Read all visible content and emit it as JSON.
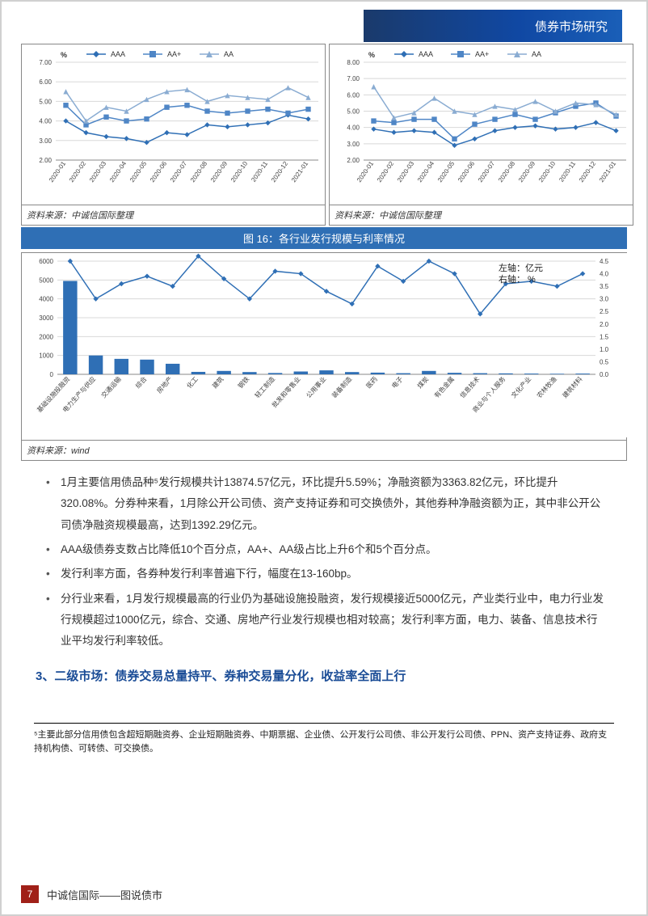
{
  "header": {
    "title": "债券市场研究"
  },
  "line_chart_left": {
    "type": "line",
    "unit": "%",
    "ylim": [
      2.0,
      7.0
    ],
    "ytick_step": 1.0,
    "categories": [
      "2020-01",
      "2020-02",
      "2020-03",
      "2020-04",
      "2020-05",
      "2020-06",
      "2020-07",
      "2020-08",
      "2020-09",
      "2020-10",
      "2020-11",
      "2020-12",
      "2021-01"
    ],
    "series": [
      {
        "name": "AAA",
        "marker": "diamond",
        "color": "#2f6fb5",
        "values": [
          4.0,
          3.4,
          3.2,
          3.1,
          2.9,
          3.4,
          3.3,
          3.8,
          3.7,
          3.8,
          3.9,
          4.3,
          4.1
        ]
      },
      {
        "name": "AA+",
        "marker": "square",
        "color": "#4f86c6",
        "values": [
          4.8,
          3.8,
          4.2,
          4.0,
          4.1,
          4.7,
          4.8,
          4.5,
          4.4,
          4.5,
          4.6,
          4.4,
          4.6
        ]
      },
      {
        "name": "AA",
        "marker": "triangle",
        "color": "#8aacd2",
        "values": [
          5.5,
          4.0,
          4.7,
          4.5,
          5.1,
          5.5,
          5.6,
          5.0,
          5.3,
          5.2,
          5.1,
          5.7,
          5.2
        ]
      }
    ],
    "source": "资料来源：中诚信国际整理",
    "grid_color": "#d8d8d8",
    "background_color": "#ffffff",
    "label_fontsize": 8
  },
  "line_chart_right": {
    "type": "line",
    "unit": "%",
    "ylim": [
      2.0,
      8.0
    ],
    "ytick_step": 1.0,
    "categories": [
      "2020-01",
      "2020-02",
      "2020-03",
      "2020-04",
      "2020-05",
      "2020-06",
      "2020-07",
      "2020-08",
      "2020-09",
      "2020-10",
      "2020-11",
      "2020-12",
      "2021-01"
    ],
    "series": [
      {
        "name": "AAA",
        "marker": "diamond",
        "color": "#2f6fb5",
        "values": [
          3.9,
          3.7,
          3.8,
          3.7,
          2.9,
          3.3,
          3.8,
          4.0,
          4.1,
          3.9,
          4.0,
          4.3,
          3.8
        ]
      },
      {
        "name": "AA+",
        "marker": "square",
        "color": "#4f86c6",
        "values": [
          4.4,
          4.3,
          4.5,
          4.5,
          3.3,
          4.2,
          4.5,
          4.8,
          4.5,
          4.9,
          5.3,
          5.5,
          4.7
        ]
      },
      {
        "name": "AA",
        "marker": "triangle",
        "color": "#8aacd2",
        "values": [
          6.5,
          4.6,
          4.9,
          5.8,
          5.0,
          4.8,
          5.3,
          5.1,
          5.6,
          5.0,
          5.5,
          5.4,
          4.8
        ]
      }
    ],
    "source": "资料来源：中诚信国际整理",
    "grid_color": "#d8d8d8",
    "background_color": "#ffffff",
    "label_fontsize": 8
  },
  "combo_chart": {
    "title_prefix": "图 16：",
    "title": "各行业发行规模与利率情况",
    "type": "bar+line",
    "left_axis_label": "左轴：亿元",
    "right_axis_label": "右轴：  %",
    "left_ylim": [
      0,
      6000
    ],
    "left_ytick_step": 1000,
    "right_ylim": [
      0.0,
      4.5
    ],
    "right_ytick_step": 0.5,
    "categories": [
      "基础设施投融资",
      "电力生产与供应",
      "交通运输",
      "综合",
      "房地产",
      "化工",
      "建筑",
      "钢铁",
      "轻工制造",
      "批发和零售业",
      "公用事业",
      "装备制造",
      "医药",
      "电子",
      "煤炭",
      "有色金属",
      "信息技术",
      "商业与个人服务",
      "文化产业",
      "农林牧渔",
      "建筑材料"
    ],
    "bars": {
      "color": "#2f6fb5",
      "values": [
        4950,
        1000,
        820,
        780,
        560,
        130,
        180,
        120,
        70,
        150,
        210,
        120,
        90,
        60,
        180,
        80,
        60,
        50,
        40,
        30,
        40
      ]
    },
    "line": {
      "color": "#2f6fb5",
      "marker": "diamond",
      "values": [
        4.5,
        3.0,
        3.6,
        3.9,
        3.5,
        4.7,
        3.8,
        3.0,
        4.1,
        4.0,
        3.3,
        2.8,
        4.3,
        3.7,
        4.5,
        4.0,
        2.4,
        3.6,
        3.7,
        3.5,
        4.0
      ]
    },
    "source": "资料来源：wind",
    "grid_color": "#d8d8d8",
    "background_color": "#ffffff",
    "label_fontsize": 8
  },
  "bullets": [
    "1月主要信用债品种⁵发行规模共计13874.57亿元，环比提升5.59%；净融资额为3363.82亿元，环比提升320.08%。分券种来看，1月除公开公司债、资产支持证券和可交换债外，其他券种净融资额为正，其中非公开公司债净融资规模最高，达到1392.29亿元。",
    "AAA级债券支数占比降低10个百分点，AA+、AA级占比上升6个和5个百分点。",
    "发行利率方面，各券种发行利率普遍下行，幅度在13-160bp。",
    "分行业来看，1月发行规模最高的行业仍为基础设施投融资，发行规模接近5000亿元，产业类行业中，电力行业发行规模超过1000亿元，综合、交通、房地产行业发行规模也相对较高；发行利率方面，电力、装备、信息技术行业平均发行利率较低。"
  ],
  "section_heading": "3、二级市场：债券交易总量持平、券种交易量分化，收益率全面上行",
  "footnote": "⁵主要此部分信用债包含超短期融资券、企业短期融资券、中期票据、企业债、公开发行公司债、非公开发行公司债、PPN、资产支持证券、政府支持机构债、可转债、可交换债。",
  "footer": {
    "page": "7",
    "text": "中诚信国际——图说债市"
  },
  "colors": {
    "accent": "#2f6fb5",
    "header_bg": "#1048a3",
    "heading": "#1a4c96",
    "pagenum_bg": "#a02018"
  }
}
